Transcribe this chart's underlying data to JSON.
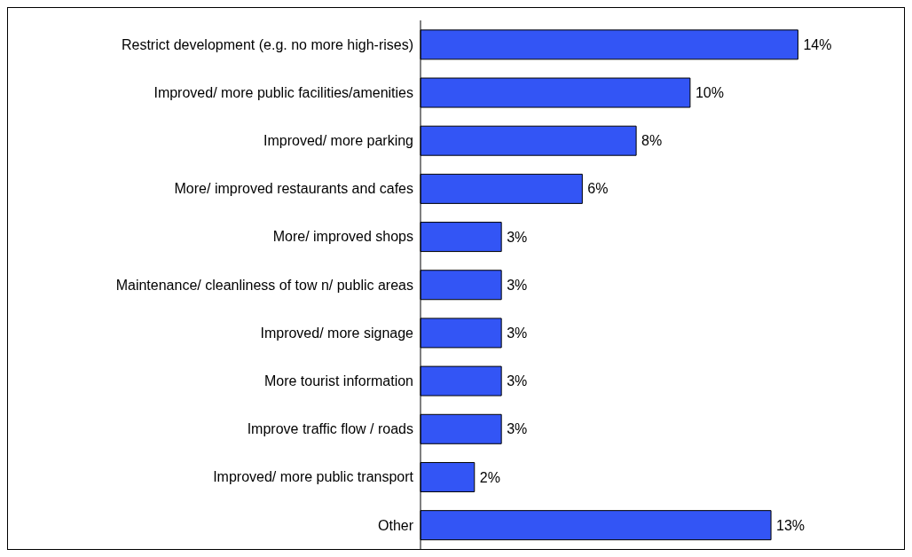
{
  "chart_data": {
    "type": "bar",
    "orientation": "horizontal",
    "categories": [
      "Restrict development (e.g. no more high-rises)",
      "Improved/ more public facilities/amenities",
      "Improved/ more parking",
      "More/ improved restaurants and cafes ",
      "More/ improved shops",
      "Maintenance/ cleanliness of tow n/ public areas",
      "Improved/ more signage",
      "More tourist information",
      "Improve traffic flow / roads",
      "Improved/ more public transport",
      "Other"
    ],
    "values": [
      14,
      10,
      8,
      6,
      3,
      3,
      3,
      3,
      3,
      2,
      13
    ],
    "value_labels": [
      "14%",
      "10%",
      "8%",
      "6%",
      "3%",
      "3%",
      "3%",
      "3%",
      "3%",
      "2%",
      "13%"
    ],
    "color": "#3355f5",
    "grid": false,
    "legend": false
  }
}
